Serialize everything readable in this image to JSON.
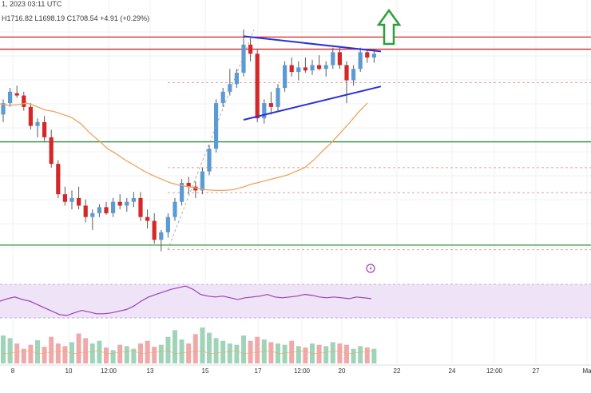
{
  "header": {
    "date_text": "1, 2023 03:11 UTC",
    "ohlc_text": "H1716.82  L1698.19  C1708.54  +4.91 (+0.29%)"
  },
  "colors": {
    "up": "#5b9bd5",
    "down": "#d62728",
    "ma": "#f0a35e",
    "trendline": "#2f2fd6",
    "resistance": "#d62728",
    "support": "#2e8b3a",
    "arrow": "#2e9e3a",
    "rsi_line": "#9b3fb5",
    "rsi_band": "#efe3f7"
  },
  "icons": {
    "breakout_arrow": "up-arrow-icon",
    "lightning": "lightning-icon"
  },
  "chart_data": {
    "type": "candlestick",
    "title": "",
    "x_tick_labels": [
      "8",
      "10",
      "12:00",
      "13",
      "15",
      "17",
      "12:00",
      "20",
      "22",
      "24",
      "12:00",
      "27",
      "Ma"
    ],
    "y_range": [
      1440,
      1745
    ],
    "candles": [
      [
        1630,
        1650,
        1620,
        1645
      ],
      [
        1645,
        1665,
        1640,
        1660
      ],
      [
        1658,
        1668,
        1652,
        1655
      ],
      [
        1655,
        1660,
        1635,
        1640
      ],
      [
        1640,
        1645,
        1610,
        1615
      ],
      [
        1615,
        1625,
        1600,
        1620
      ],
      [
        1620,
        1628,
        1595,
        1600
      ],
      [
        1600,
        1610,
        1560,
        1565
      ],
      [
        1565,
        1570,
        1520,
        1525
      ],
      [
        1525,
        1535,
        1510,
        1515
      ],
      [
        1515,
        1530,
        1505,
        1520
      ],
      [
        1520,
        1535,
        1505,
        1510
      ],
      [
        1510,
        1518,
        1488,
        1495
      ],
      [
        1495,
        1505,
        1478,
        1500
      ],
      [
        1500,
        1512,
        1495,
        1508
      ],
      [
        1508,
        1515,
        1498,
        1500
      ],
      [
        1500,
        1520,
        1495,
        1515
      ],
      [
        1515,
        1525,
        1505,
        1510
      ],
      [
        1510,
        1520,
        1502,
        1515
      ],
      [
        1515,
        1528,
        1508,
        1520
      ],
      [
        1520,
        1528,
        1490,
        1495
      ],
      [
        1495,
        1505,
        1480,
        1490
      ],
      [
        1490,
        1500,
        1460,
        1465
      ],
      [
        1465,
        1478,
        1450,
        1475
      ],
      [
        1475,
        1500,
        1468,
        1495
      ],
      [
        1495,
        1520,
        1490,
        1515
      ],
      [
        1515,
        1545,
        1510,
        1540
      ],
      [
        1540,
        1548,
        1525,
        1535
      ],
      [
        1535,
        1542,
        1520,
        1530
      ],
      [
        1530,
        1560,
        1525,
        1555
      ],
      [
        1555,
        1590,
        1550,
        1585
      ],
      [
        1585,
        1650,
        1580,
        1645
      ],
      [
        1645,
        1665,
        1640,
        1660
      ],
      [
        1660,
        1690,
        1655,
        1670
      ],
      [
        1670,
        1690,
        1665,
        1685
      ],
      [
        1685,
        1742,
        1680,
        1722
      ],
      [
        1722,
        1732,
        1700,
        1710
      ],
      [
        1710,
        1715,
        1620,
        1625
      ],
      [
        1625,
        1650,
        1618,
        1645
      ],
      [
        1645,
        1660,
        1630,
        1640
      ],
      [
        1640,
        1670,
        1635,
        1665
      ],
      [
        1665,
        1700,
        1660,
        1695
      ],
      [
        1695,
        1705,
        1680,
        1686
      ],
      [
        1686,
        1700,
        1675,
        1692
      ],
      [
        1692,
        1705,
        1685,
        1688
      ],
      [
        1688,
        1702,
        1682,
        1695
      ],
      [
        1695,
        1708,
        1688,
        1690
      ],
      [
        1690,
        1700,
        1680,
        1695
      ],
      [
        1695,
        1718,
        1690,
        1712
      ],
      [
        1712,
        1718,
        1690,
        1695
      ],
      [
        1695,
        1700,
        1645,
        1675
      ],
      [
        1675,
        1695,
        1668,
        1690
      ],
      [
        1690,
        1718,
        1686,
        1712
      ],
      [
        1712,
        1716,
        1698,
        1705
      ],
      [
        1705,
        1716,
        1698,
        1710
      ]
    ],
    "moving_average": [
      1644,
      1642,
      1643,
      1645,
      1641,
      1636,
      1634,
      1630,
      1626,
      1618,
      1606,
      1596,
      1585,
      1578,
      1570,
      1563,
      1556,
      1550,
      1545,
      1540,
      1537,
      1535,
      1533,
      1531,
      1530,
      1530,
      1531,
      1534,
      1538,
      1541,
      1544,
      1547,
      1550,
      1555,
      1560,
      1570,
      1582,
      1593,
      1606,
      1619,
      1633,
      1645
    ],
    "rsi": [
      50,
      53,
      55,
      52,
      50,
      46,
      42,
      38,
      34,
      33,
      36,
      39,
      37,
      35,
      35,
      36,
      38,
      40,
      44,
      50,
      55,
      58,
      61,
      64,
      66,
      68,
      64,
      58,
      56,
      55,
      56,
      54,
      52,
      54,
      55,
      56,
      58,
      55,
      54,
      55,
      56,
      58,
      57,
      55,
      54,
      55,
      54,
      53,
      55,
      54,
      53
    ],
    "volume": [
      42,
      38,
      30,
      22,
      28,
      35,
      25,
      40,
      30,
      26,
      32,
      45,
      38,
      30,
      34,
      24,
      20,
      28,
      26,
      22,
      30,
      34,
      25,
      28,
      40,
      50,
      36,
      30,
      44,
      54,
      46,
      38,
      34,
      30,
      28,
      42,
      34,
      40,
      36,
      32,
      30,
      28,
      34,
      26,
      24,
      30,
      28,
      26,
      32,
      30,
      28,
      22,
      26,
      24,
      22
    ],
    "resistance_levels": [
      1732,
      1716
    ],
    "support_levels": [
      1594,
      1458
    ],
    "dotted_levels": [
      1672,
      1560,
      1527,
      1452
    ],
    "triangle_upper": [
      [
        35,
        1733
      ],
      [
        55,
        1713
      ]
    ],
    "triangle_lower": [
      [
        35,
        1623
      ],
      [
        55,
        1667
      ]
    ]
  }
}
